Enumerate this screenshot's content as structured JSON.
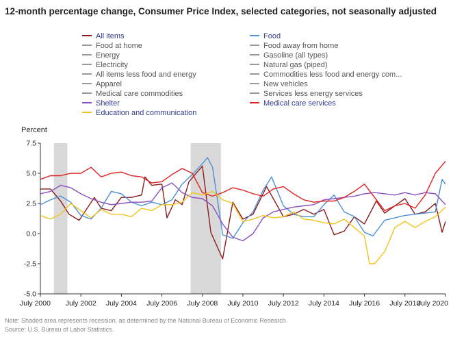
{
  "title": "12-month percentage change, Consumer Price Index, selected categories, not seasonally adjusted",
  "legend": [
    {
      "label": "All items",
      "color": "#8b1a1a",
      "active": true
    },
    {
      "label": "Food",
      "color": "#4a90d9",
      "active": true
    },
    {
      "label": "Food at home",
      "color": "#999999",
      "active": false
    },
    {
      "label": "Food away from home",
      "color": "#999999",
      "active": false
    },
    {
      "label": "Energy",
      "color": "#999999",
      "active": false
    },
    {
      "label": "Gasoline (all types)",
      "color": "#999999",
      "active": false
    },
    {
      "label": "Electricity",
      "color": "#999999",
      "active": false
    },
    {
      "label": "Natural gas (piped)",
      "color": "#999999",
      "active": false
    },
    {
      "label": "All items less food and energy",
      "color": "#999999",
      "active": false
    },
    {
      "label": "Commodities less food and energy com...",
      "color": "#999999",
      "active": false
    },
    {
      "label": "Apparel",
      "color": "#999999",
      "active": false
    },
    {
      "label": "New vehicles",
      "color": "#999999",
      "active": false
    },
    {
      "label": "Medical care commodities",
      "color": "#999999",
      "active": false
    },
    {
      "label": "Services less energy services",
      "color": "#999999",
      "active": false
    },
    {
      "label": "Shelter",
      "color": "#8a4fc0",
      "active": true
    },
    {
      "label": "Medical care services",
      "color": "#e02020",
      "active": true
    },
    {
      "label": "Education and communication",
      "color": "#f2c31b",
      "active": true
    }
  ],
  "notes": {
    "note": "Note: Shaded area represents recession, as determined by the National Bureau of Economic Research.",
    "source": "Source: U.S. Bureau of Labor Statistics."
  },
  "chart_data": {
    "type": "line",
    "ylabel": "Percent",
    "ylim": [
      -5.0,
      7.5
    ],
    "yticks": [
      "7.5",
      "5.0",
      "2.5",
      "0.0",
      "-2.5",
      "-5.0"
    ],
    "xlim": [
      "2000-07",
      "2020-07"
    ],
    "xticks": [
      "July 2000",
      "July 2002",
      "July 2004",
      "July 2006",
      "July 2008",
      "July 2010",
      "July 2012",
      "July 2014",
      "July 2016",
      "July 2018",
      "July 2020"
    ],
    "grid": false,
    "recessions": [
      [
        "2001-03",
        "2001-11"
      ],
      [
        "2007-12",
        "2009-06"
      ]
    ],
    "series": [
      {
        "name": "All items",
        "color": "#8b1a1a",
        "x": [
          "2000-07",
          "2001-01",
          "2001-07",
          "2001-12",
          "2002-06",
          "2003-03",
          "2003-07",
          "2004-01",
          "2004-07",
          "2005-01",
          "2005-07",
          "2005-09",
          "2006-01",
          "2006-07",
          "2006-10",
          "2007-03",
          "2007-07",
          "2007-11",
          "2008-07",
          "2008-12",
          "2009-07",
          "2010-01",
          "2010-07",
          "2011-01",
          "2011-09",
          "2012-07",
          "2013-01",
          "2013-07",
          "2014-01",
          "2014-07",
          "2015-01",
          "2015-07",
          "2016-01",
          "2016-07",
          "2017-02",
          "2017-07",
          "2018-07",
          "2019-01",
          "2019-07",
          "2020-01",
          "2020-05",
          "2020-07"
        ],
        "y": [
          3.7,
          3.7,
          2.7,
          1.6,
          1.1,
          3.0,
          2.1,
          1.9,
          3.0,
          3.0,
          3.2,
          4.7,
          4.0,
          4.1,
          1.3,
          2.8,
          2.4,
          4.3,
          5.6,
          0.1,
          -2.1,
          2.6,
          1.2,
          1.6,
          3.9,
          1.4,
          1.6,
          2.0,
          1.6,
          2.0,
          -0.1,
          0.2,
          1.4,
          0.8,
          2.7,
          1.7,
          2.9,
          1.6,
          1.8,
          2.5,
          0.1,
          1.0
        ]
      },
      {
        "name": "Food",
        "color": "#4a90d9",
        "x": [
          "2000-07",
          "2001-01",
          "2001-07",
          "2002-01",
          "2002-07",
          "2003-01",
          "2003-07",
          "2004-01",
          "2004-07",
          "2005-01",
          "2005-07",
          "2006-01",
          "2006-07",
          "2007-01",
          "2007-07",
          "2008-01",
          "2008-07",
          "2008-10",
          "2009-01",
          "2009-07",
          "2010-01",
          "2010-07",
          "2011-01",
          "2011-07",
          "2011-12",
          "2012-07",
          "2013-01",
          "2013-07",
          "2014-01",
          "2014-07",
          "2015-01",
          "2015-07",
          "2016-01",
          "2016-07",
          "2016-12",
          "2017-07",
          "2018-07",
          "2019-07",
          "2020-01",
          "2020-05",
          "2020-07"
        ],
        "y": [
          2.4,
          2.8,
          3.1,
          2.6,
          1.5,
          1.2,
          2.1,
          3.5,
          3.3,
          2.6,
          2.3,
          2.6,
          2.4,
          2.8,
          4.1,
          4.9,
          5.8,
          6.3,
          5.5,
          -0.1,
          -0.4,
          0.9,
          1.8,
          3.6,
          4.7,
          2.3,
          1.6,
          1.4,
          1.4,
          2.4,
          3.2,
          1.8,
          1.4,
          0.1,
          -0.2,
          1.1,
          1.5,
          1.7,
          1.8,
          4.5,
          4.1
        ]
      },
      {
        "name": "Shelter",
        "color": "#8a4fc0",
        "x": [
          "2000-07",
          "2001-01",
          "2001-07",
          "2002-01",
          "2002-07",
          "2003-01",
          "2003-07",
          "2004-01",
          "2004-07",
          "2005-01",
          "2005-07",
          "2006-01",
          "2006-07",
          "2007-01",
          "2007-07",
          "2008-01",
          "2008-07",
          "2009-01",
          "2009-07",
          "2010-01",
          "2010-07",
          "2011-01",
          "2011-07",
          "2012-01",
          "2012-07",
          "2013-01",
          "2013-07",
          "2014-01",
          "2014-07",
          "2015-01",
          "2015-07",
          "2016-01",
          "2016-07",
          "2017-01",
          "2017-07",
          "2018-01",
          "2018-07",
          "2019-01",
          "2019-07",
          "2020-01",
          "2020-07"
        ],
        "y": [
          3.3,
          3.5,
          4.0,
          3.8,
          3.3,
          2.9,
          2.6,
          2.4,
          2.5,
          2.6,
          2.6,
          2.7,
          3.8,
          4.2,
          3.4,
          3.0,
          2.9,
          2.3,
          0.8,
          -0.3,
          -0.6,
          0.0,
          1.3,
          1.8,
          2.0,
          2.2,
          2.3,
          2.4,
          2.8,
          2.9,
          3.0,
          3.1,
          3.3,
          3.4,
          3.3,
          3.2,
          3.4,
          3.2,
          3.4,
          3.3,
          2.4
        ]
      },
      {
        "name": "Medical care services",
        "color": "#e02020",
        "x": [
          "2000-07",
          "2001-01",
          "2001-07",
          "2002-01",
          "2002-07",
          "2003-01",
          "2003-07",
          "2004-01",
          "2004-07",
          "2005-01",
          "2005-07",
          "2006-01",
          "2006-07",
          "2007-01",
          "2007-07",
          "2008-01",
          "2008-07",
          "2009-01",
          "2009-07",
          "2010-01",
          "2010-07",
          "2011-01",
          "2011-07",
          "2012-01",
          "2012-07",
          "2013-01",
          "2013-07",
          "2014-01",
          "2014-07",
          "2015-01",
          "2015-07",
          "2016-01",
          "2016-07",
          "2017-01",
          "2017-07",
          "2018-01",
          "2018-07",
          "2019-01",
          "2019-07",
          "2020-01",
          "2020-07"
        ],
        "y": [
          4.5,
          4.8,
          4.8,
          5.0,
          5.0,
          5.5,
          4.7,
          5.0,
          5.1,
          4.8,
          4.7,
          4.2,
          4.3,
          4.9,
          5.4,
          5.0,
          3.4,
          3.1,
          3.4,
          3.8,
          3.6,
          3.3,
          3.1,
          3.7,
          3.9,
          3.3,
          2.8,
          2.6,
          2.7,
          2.7,
          3.0,
          3.5,
          4.1,
          3.0,
          1.9,
          2.3,
          2.5,
          2.1,
          3.2,
          5.0,
          6.0
        ]
      },
      {
        "name": "Education and communication",
        "color": "#f2c31b",
        "x": [
          "2000-07",
          "2001-01",
          "2001-07",
          "2002-01",
          "2002-07",
          "2003-01",
          "2003-07",
          "2004-01",
          "2004-07",
          "2005-01",
          "2005-07",
          "2006-01",
          "2006-07",
          "2007-01",
          "2007-07",
          "2008-01",
          "2008-07",
          "2009-01",
          "2009-07",
          "2010-01",
          "2010-07",
          "2011-01",
          "2011-07",
          "2012-01",
          "2012-07",
          "2013-01",
          "2013-07",
          "2014-01",
          "2014-07",
          "2015-01",
          "2015-07",
          "2016-01",
          "2016-07",
          "2016-10",
          "2017-01",
          "2017-07",
          "2018-01",
          "2018-07",
          "2019-01",
          "2019-07",
          "2020-01",
          "2020-07"
        ],
        "y": [
          1.5,
          1.2,
          1.6,
          2.5,
          1.9,
          1.3,
          2.0,
          1.6,
          1.6,
          1.4,
          2.1,
          1.9,
          2.4,
          2.4,
          2.6,
          3.4,
          3.2,
          3.5,
          2.8,
          2.5,
          1.0,
          1.2,
          1.5,
          1.3,
          1.4,
          1.8,
          1.2,
          1.1,
          0.9,
          0.8,
          1.2,
          0.5,
          -0.2,
          -2.5,
          -2.5,
          -1.5,
          0.5,
          1.0,
          0.5,
          1.0,
          1.4,
          2.2
        ]
      }
    ]
  }
}
